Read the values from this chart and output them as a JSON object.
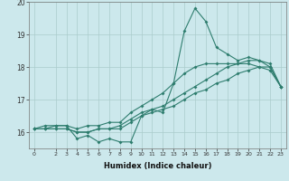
{
  "title": "",
  "xlabel": "Humidex (Indice chaleur)",
  "ylabel": "",
  "bg_color": "#cce8ec",
  "line_color": "#2e7d6e",
  "grid_color": "#aacccc",
  "xlim": [
    -0.5,
    23.5
  ],
  "ylim": [
    15.5,
    20.0
  ],
  "yticks": [
    16,
    17,
    18,
    19,
    20
  ],
  "xticks": [
    0,
    2,
    3,
    4,
    5,
    6,
    7,
    8,
    9,
    10,
    11,
    12,
    13,
    14,
    15,
    16,
    17,
    18,
    19,
    20,
    21,
    22,
    23
  ],
  "series": [
    [
      16.1,
      16.1,
      16.2,
      16.2,
      15.8,
      15.9,
      15.7,
      15.8,
      15.7,
      15.7,
      16.5,
      16.7,
      16.6,
      17.5,
      19.1,
      19.8,
      19.4,
      18.6,
      18.4,
      18.2,
      18.3,
      18.2,
      18.0,
      17.4
    ],
    [
      16.1,
      16.2,
      16.2,
      16.2,
      16.1,
      16.2,
      16.2,
      16.3,
      16.3,
      16.6,
      16.8,
      17.0,
      17.2,
      17.5,
      17.8,
      18.0,
      18.1,
      18.1,
      18.1,
      18.1,
      18.1,
      18.0,
      17.9,
      17.4
    ],
    [
      16.1,
      16.1,
      16.1,
      16.1,
      16.0,
      16.0,
      16.1,
      16.1,
      16.1,
      16.3,
      16.5,
      16.6,
      16.7,
      16.8,
      17.0,
      17.2,
      17.3,
      17.5,
      17.6,
      17.8,
      17.9,
      18.0,
      18.0,
      17.4
    ],
    [
      16.1,
      16.1,
      16.1,
      16.1,
      16.0,
      16.0,
      16.1,
      16.1,
      16.2,
      16.4,
      16.6,
      16.7,
      16.8,
      17.0,
      17.2,
      17.4,
      17.6,
      17.8,
      18.0,
      18.1,
      18.2,
      18.2,
      18.1,
      17.4
    ]
  ]
}
